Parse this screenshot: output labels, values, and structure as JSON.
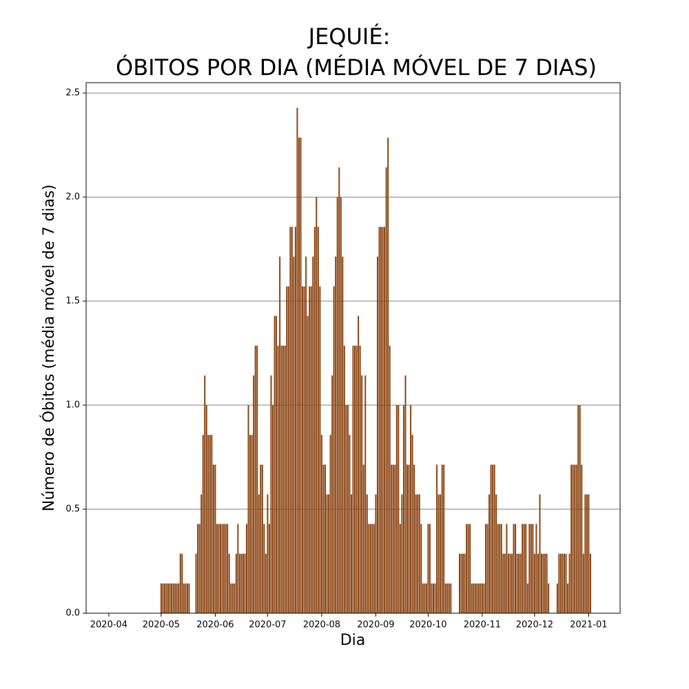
{
  "chart_data": {
    "type": "bar",
    "title": [
      "JEQUIÉ:",
      "ÓBITOS POR DIA (MÉDIA MÓVEL DE 7 DIAS)"
    ],
    "xlabel": "Dia",
    "ylabel": "Número de Óbitos (média móvel de 7 dias)",
    "color": "#8b4513",
    "grid": true,
    "xlim": [
      18340,
      18646
    ],
    "xticks": [
      {
        "value": 18353,
        "label": "2020-04"
      },
      {
        "value": 18383,
        "label": "2020-05"
      },
      {
        "value": 18414,
        "label": "2020-06"
      },
      {
        "value": 18444,
        "label": "2020-07"
      },
      {
        "value": 18475,
        "label": "2020-08"
      },
      {
        "value": 18506,
        "label": "2020-09"
      },
      {
        "value": 18536,
        "label": "2020-10"
      },
      {
        "value": 18567,
        "label": "2020-11"
      },
      {
        "value": 18597,
        "label": "2020-12"
      },
      {
        "value": 18628,
        "label": "2021-01"
      }
    ],
    "ylim": [
      0,
      2.55
    ],
    "yticks": [
      {
        "value": 0,
        "label": "0.0"
      },
      0.5,
      {
        "value": 1,
        "label": "1.0"
      },
      1.5,
      {
        "value": 2,
        "label": "2.0"
      },
      2.5
    ],
    "x": [
      18383,
      18384,
      18385,
      18386,
      18387,
      18388,
      18389,
      18390,
      18391,
      18392,
      18393,
      18394,
      18395,
      18396,
      18397,
      18398,
      18399,
      18400,
      18401,
      18402,
      18403,
      18404,
      18405,
      18406,
      18407,
      18408,
      18409,
      18410,
      18411,
      18412,
      18413,
      18414,
      18415,
      18416,
      18417,
      18418,
      18419,
      18420,
      18421,
      18422,
      18423,
      18424,
      18425,
      18426,
      18427,
      18428,
      18429,
      18430,
      18431,
      18432,
      18433,
      18434,
      18435,
      18436,
      18437,
      18438,
      18439,
      18440,
      18441,
      18442,
      18443,
      18444,
      18445,
      18446,
      18447,
      18448,
      18449,
      18450,
      18451,
      18452,
      18453,
      18454,
      18455,
      18456,
      18457,
      18458,
      18459,
      18460,
      18461,
      18462,
      18463,
      18464,
      18465,
      18466,
      18467,
      18468,
      18469,
      18470,
      18471,
      18472,
      18473,
      18474,
      18475,
      18476,
      18477,
      18478,
      18479,
      18480,
      18481,
      18482,
      18483,
      18484,
      18485,
      18486,
      18487,
      18488,
      18489,
      18490,
      18491,
      18492,
      18493,
      18494,
      18495,
      18496,
      18497,
      18498,
      18499,
      18500,
      18501,
      18502,
      18503,
      18504,
      18505,
      18506,
      18507,
      18508,
      18509,
      18510,
      18511,
      18512,
      18513,
      18514,
      18515,
      18516,
      18517,
      18518,
      18519,
      18520,
      18521,
      18522,
      18523,
      18524,
      18525,
      18526,
      18527,
      18528,
      18529,
      18530,
      18531,
      18532,
      18533,
      18534,
      18535,
      18536,
      18537,
      18538,
      18539,
      18540,
      18541,
      18542,
      18543,
      18544,
      18545,
      18546,
      18547,
      18548,
      18549,
      18550,
      18551,
      18552,
      18553,
      18554,
      18555,
      18556,
      18557,
      18558,
      18559,
      18560,
      18561,
      18562,
      18563,
      18564,
      18565,
      18566,
      18567,
      18568,
      18569,
      18570,
      18571,
      18572,
      18573,
      18574,
      18575,
      18576,
      18577,
      18578,
      18579,
      18580,
      18581,
      18582,
      18583,
      18584,
      18585,
      18586,
      18587,
      18588,
      18589,
      18590,
      18591,
      18592,
      18593,
      18594,
      18595,
      18596,
      18597,
      18598,
      18599,
      18600,
      18601,
      18602,
      18603,
      18604,
      18605,
      18606,
      18607,
      18608,
      18609,
      18610,
      18611,
      18612,
      18613,
      18614,
      18615,
      18616,
      18617,
      18618,
      18619,
      18620,
      18621,
      18622,
      18623,
      18624,
      18625,
      18626,
      18627,
      18628,
      18629
    ],
    "values": [
      0.143,
      0.143,
      0.143,
      0.143,
      0.143,
      0.143,
      0.143,
      0.143,
      0.143,
      0.143,
      0.143,
      0.286,
      0.286,
      0.143,
      0.143,
      0.143,
      0.143,
      0,
      0,
      0,
      0.286,
      0.429,
      0.429,
      0.571,
      0.857,
      1.143,
      1.0,
      0.857,
      0.857,
      0.857,
      0.714,
      0.714,
      0.429,
      0.429,
      0.429,
      0.429,
      0.429,
      0.429,
      0.429,
      0.286,
      0.143,
      0.143,
      0.143,
      0.286,
      0.429,
      0.286,
      0.286,
      0.286,
      0.286,
      0.429,
      1.0,
      0.857,
      0.857,
      1.143,
      1.286,
      1.286,
      0.571,
      0.714,
      0.714,
      0.429,
      0.286,
      0.571,
      0.429,
      1.143,
      1.0,
      1.429,
      1.429,
      1.286,
      1.714,
      1.286,
      1.286,
      1.286,
      1.571,
      1.571,
      1.857,
      1.857,
      1.714,
      1.857,
      2.429,
      2.286,
      2.286,
      1.571,
      1.571,
      1.714,
      1.429,
      1.571,
      1.571,
      1.714,
      1.857,
      2.0,
      1.857,
      1.571,
      0.857,
      0.714,
      0.714,
      0.571,
      0.571,
      0.857,
      1.143,
      1.571,
      1.714,
      2.0,
      2.143,
      2.0,
      1.714,
      1.286,
      1.0,
      1.0,
      0.857,
      0.571,
      1.286,
      1.286,
      1.286,
      1.429,
      1.286,
      1.143,
      0.714,
      1.143,
      0.571,
      0.429,
      0.429,
      0.429,
      0.429,
      0.571,
      1.714,
      1.857,
      1.857,
      1.857,
      1.857,
      2.143,
      2.286,
      1.286,
      0.714,
      0.714,
      0.714,
      1.0,
      1.0,
      0.429,
      0.571,
      1.0,
      1.143,
      0.714,
      0.714,
      1.0,
      0.857,
      0.714,
      0.571,
      0.571,
      0.571,
      0.429,
      0.143,
      0.143,
      0.143,
      0.429,
      0.429,
      0.143,
      0.143,
      0.143,
      0.714,
      0.571,
      0.571,
      0.714,
      0.714,
      0.143,
      0.143,
      0.143,
      0.143,
      0,
      0,
      0,
      0,
      0.286,
      0.286,
      0.286,
      0.286,
      0.429,
      0.429,
      0.429,
      0.143,
      0.143,
      0.143,
      0.143,
      0.143,
      0.143,
      0.143,
      0.143,
      0.429,
      0.429,
      0.571,
      0.714,
      0.714,
      0.714,
      0.571,
      0.429,
      0.429,
      0.429,
      0.286,
      0.286,
      0.429,
      0.286,
      0.286,
      0.286,
      0.429,
      0.429,
      0.286,
      0.286,
      0.286,
      0.429,
      0.429,
      0.429,
      0.143,
      0.429,
      0.429,
      0.429,
      0.286,
      0.429,
      0.286,
      0.571,
      0.286,
      0.286,
      0.286,
      0.286,
      0.143,
      0,
      0,
      0,
      0,
      0.143,
      0.286,
      0.286,
      0.286,
      0.286,
      0.286,
      0.143,
      0.286,
      0.714,
      0.714,
      0.714,
      0.714,
      1.0,
      1.0,
      0.714,
      0.286,
      0.571,
      0.571,
      0.571,
      0.286
    ]
  }
}
